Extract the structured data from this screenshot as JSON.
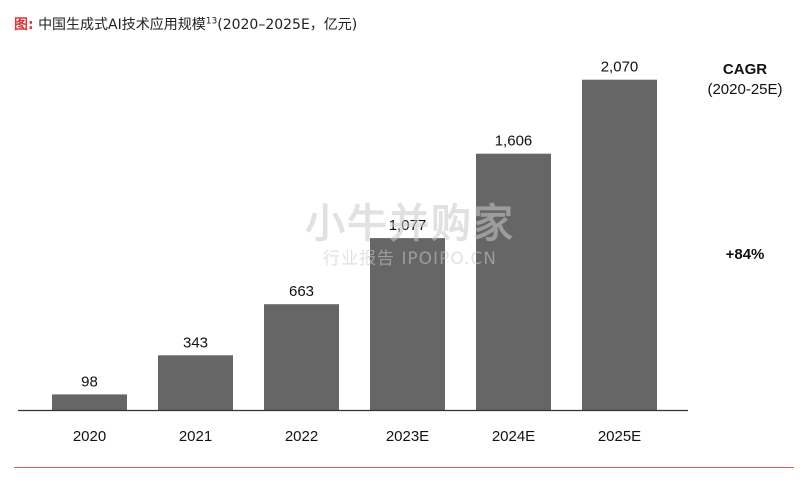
{
  "header": {
    "prefix": "图:",
    "title": "中国生成式AI技术应用规模",
    "footnote_ref": "13",
    "suffix": "(2020–2025E，亿元)"
  },
  "chart_data": {
    "type": "bar",
    "categories": [
      "2020",
      "2021",
      "2022",
      "2023E",
      "2024E",
      "2025E"
    ],
    "values": [
      98,
      343,
      663,
      1077,
      1606,
      2070
    ],
    "value_labels": [
      "98",
      "343",
      "663",
      "1,077",
      "1,606",
      "2,070"
    ],
    "ylim": [
      0,
      2300
    ],
    "grid": false,
    "bar_color": "#666666",
    "axis_color": "#333333"
  },
  "cagr": {
    "title": "CAGR",
    "period": "(2020-25E)",
    "value": "+84%"
  },
  "watermark": {
    "brand": "小牛并购家",
    "sub": "行业报告 IPOIPO.CN"
  },
  "colors": {
    "accent": "#d63a3a",
    "rule": "#e05a5a"
  }
}
